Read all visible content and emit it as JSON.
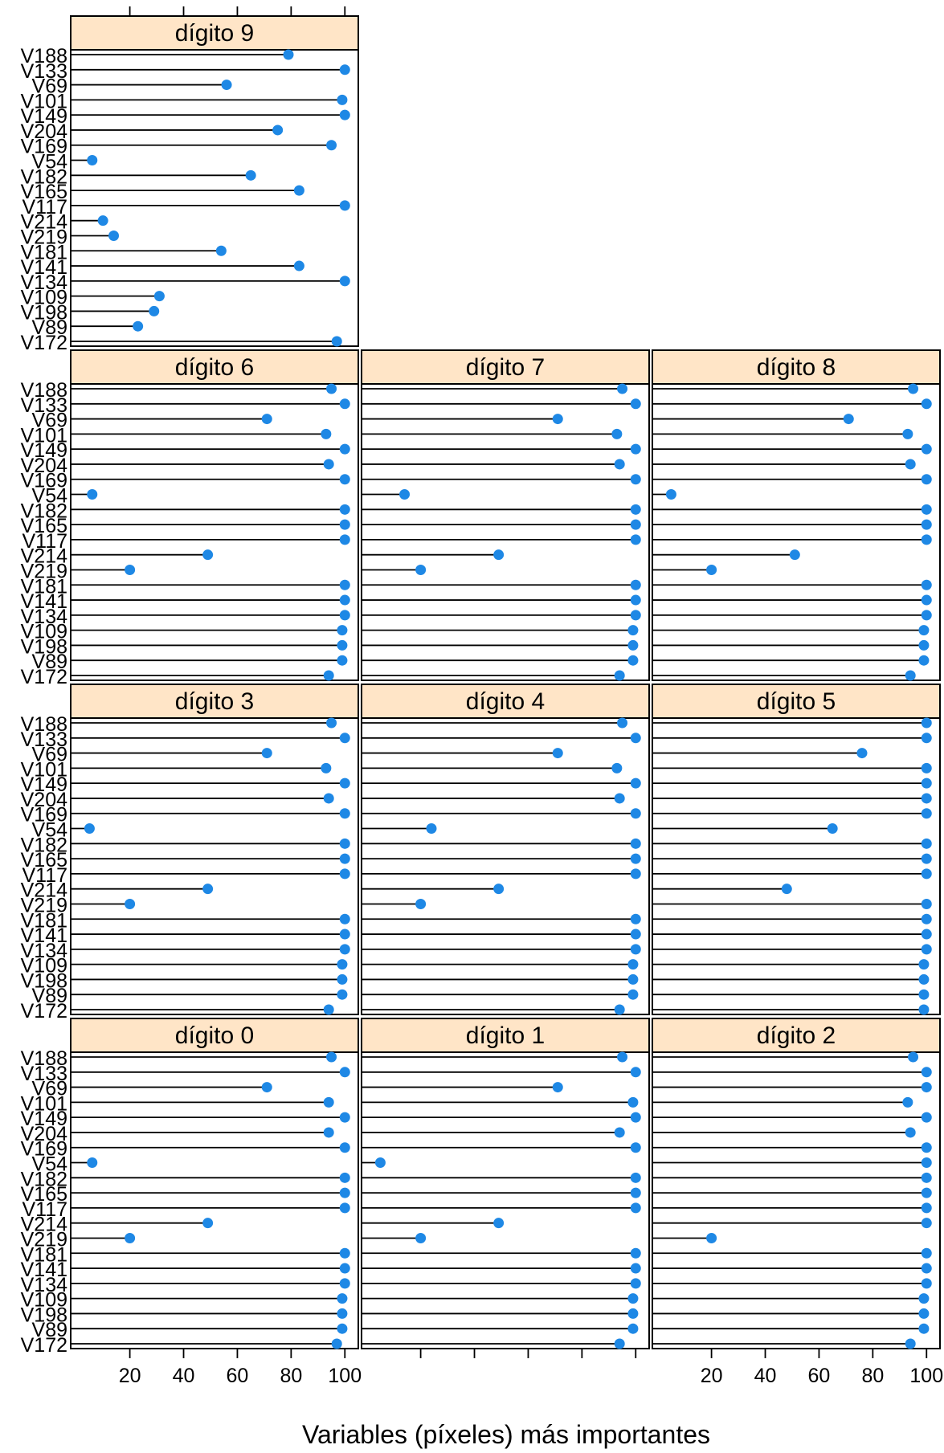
{
  "chart_data": {
    "type": "dotplot",
    "xlabel": "Variables (píxeles) más importantes",
    "ylabel": "",
    "xlim": [
      -2,
      105
    ],
    "x_ticks": [
      20,
      40,
      60,
      80,
      100
    ],
    "point_color": "#1e88e5",
    "strip_color": "#ffe5c7",
    "variables": [
      "V188",
      "V133",
      "V69",
      "V101",
      "V149",
      "V204",
      "V169",
      "V54",
      "V182",
      "V165",
      "V117",
      "V214",
      "V219",
      "V181",
      "V141",
      "V134",
      "V109",
      "V198",
      "V89",
      "V172"
    ],
    "panels": [
      {
        "title": "dígito 9",
        "values": [
          79,
          100,
          56,
          99,
          100,
          75,
          95,
          6,
          65,
          83,
          100,
          10,
          14,
          54,
          83,
          100,
          31,
          29,
          23,
          97
        ]
      },
      {
        "title": "dígito 6",
        "values": [
          95,
          100,
          71,
          93,
          100,
          94,
          100,
          6,
          100,
          100,
          100,
          49,
          20,
          100,
          100,
          100,
          99,
          99,
          99,
          94
        ]
      },
      {
        "title": "dígito 7",
        "values": [
          95,
          100,
          71,
          93,
          100,
          94,
          100,
          14,
          100,
          100,
          100,
          49,
          20,
          100,
          100,
          100,
          99,
          99,
          99,
          94
        ]
      },
      {
        "title": "dígito 8",
        "values": [
          95,
          100,
          71,
          93,
          100,
          94,
          100,
          5,
          100,
          100,
          100,
          51,
          20,
          100,
          100,
          100,
          99,
          99,
          99,
          94
        ]
      },
      {
        "title": "dígito 3",
        "values": [
          95,
          100,
          71,
          93,
          100,
          94,
          100,
          5,
          100,
          100,
          100,
          49,
          20,
          100,
          100,
          100,
          99,
          99,
          99,
          94
        ]
      },
      {
        "title": "dígito 4",
        "values": [
          95,
          100,
          71,
          93,
          100,
          94,
          100,
          24,
          100,
          100,
          100,
          49,
          20,
          100,
          100,
          100,
          99,
          99,
          99,
          94
        ]
      },
      {
        "title": "dígito 5",
        "values": [
          100,
          100,
          76,
          100,
          100,
          100,
          100,
          65,
          100,
          100,
          100,
          48,
          100,
          100,
          100,
          100,
          99,
          99,
          99,
          99
        ]
      },
      {
        "title": "dígito 0",
        "values": [
          95,
          100,
          71,
          94,
          100,
          94,
          100,
          6,
          100,
          100,
          100,
          49,
          20,
          100,
          100,
          100,
          99,
          99,
          99,
          97
        ]
      },
      {
        "title": "dígito 1",
        "values": [
          95,
          100,
          71,
          99,
          100,
          94,
          100,
          5,
          100,
          100,
          100,
          49,
          20,
          100,
          100,
          100,
          99,
          99,
          99,
          94
        ]
      },
      {
        "title": "dígito 2",
        "values": [
          95,
          100,
          100,
          93,
          100,
          94,
          100,
          100,
          100,
          100,
          100,
          100,
          20,
          100,
          100,
          100,
          99,
          99,
          99,
          94
        ]
      }
    ]
  }
}
